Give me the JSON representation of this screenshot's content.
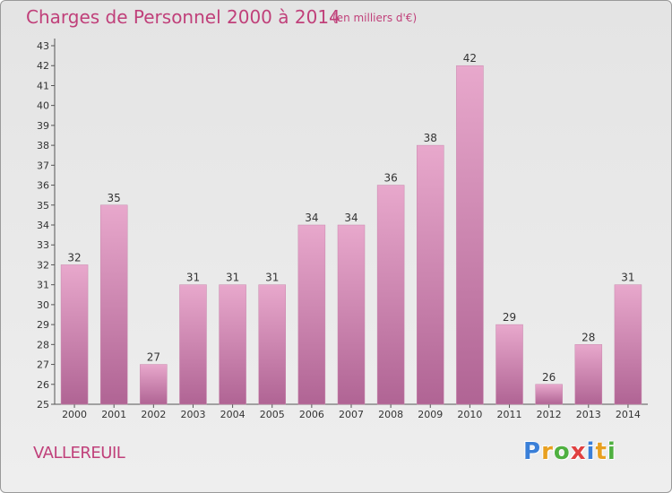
{
  "header": {
    "title": "Charges de Personnel 2000 à 2014",
    "subtitle": "(en milliers d'€)"
  },
  "footer": {
    "place": "VALLEREUIL",
    "logo_text": "Proxiti"
  },
  "colors": {
    "bar_top": "#e8a8cc",
    "bar_bottom": "#b06494",
    "title": "#c0407a",
    "logo_letters": [
      "#3a7fd8",
      "#e8a020",
      "#4fb040",
      "#e04040",
      "#3a7fd8",
      "#e8a020",
      "#4fb040"
    ]
  },
  "chart_data": {
    "type": "bar",
    "categories": [
      "2000",
      "2001",
      "2002",
      "2003",
      "2004",
      "2005",
      "2006",
      "2007",
      "2008",
      "2009",
      "2010",
      "2011",
      "2012",
      "2013",
      "2014"
    ],
    "values": [
      32,
      35,
      27,
      31,
      31,
      31,
      34,
      34,
      36,
      38,
      42,
      29,
      26,
      28,
      31
    ],
    "ylim": [
      25,
      43
    ],
    "yticks": [
      25,
      26,
      27,
      28,
      29,
      30,
      31,
      32,
      33,
      34,
      35,
      36,
      37,
      38,
      39,
      40,
      41,
      42,
      43
    ],
    "data_labels": true,
    "grid": false
  }
}
